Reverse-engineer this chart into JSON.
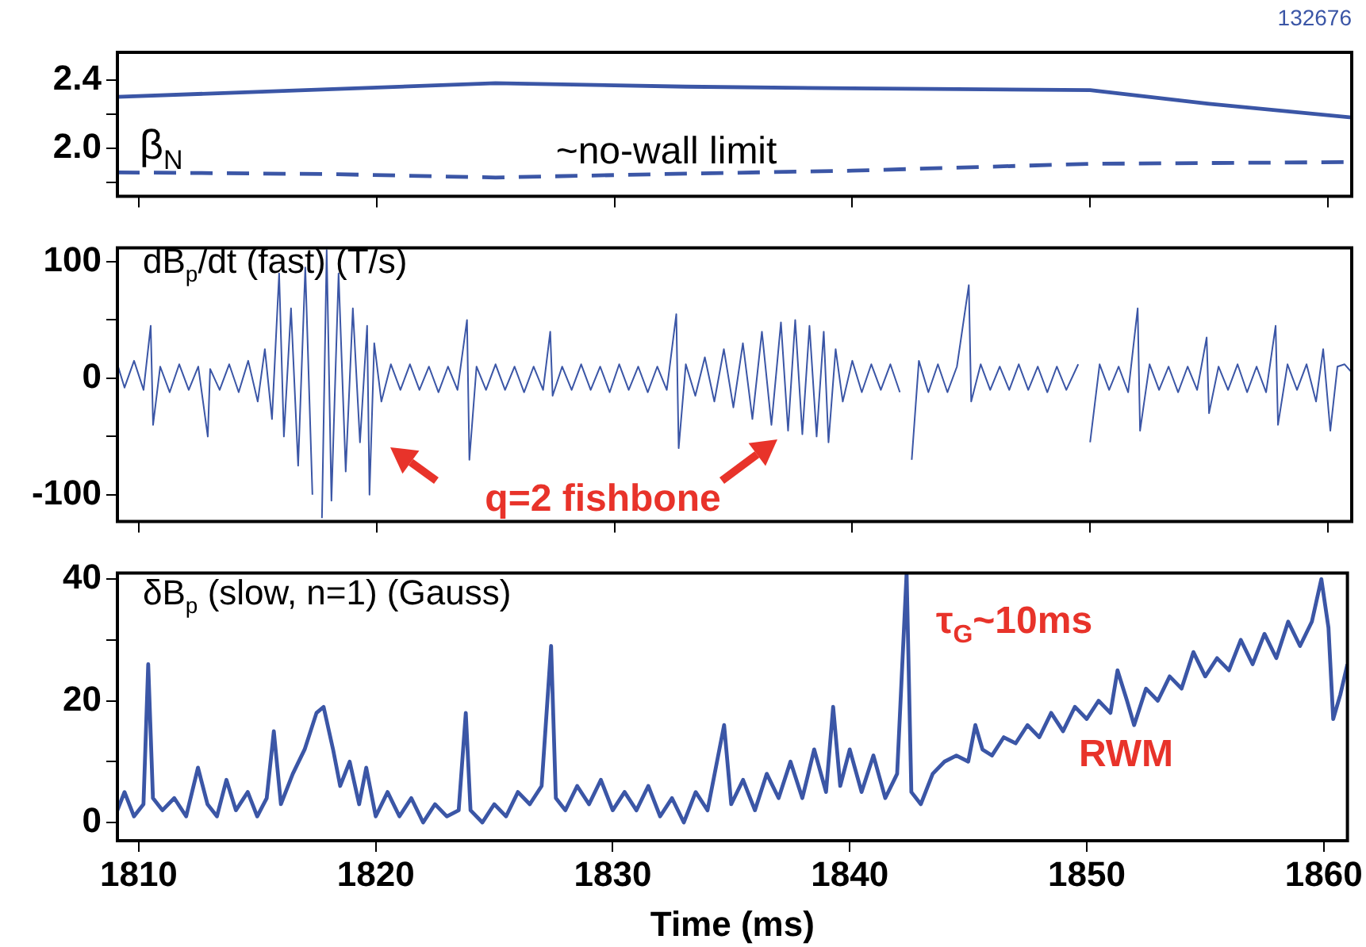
{
  "chart_data": [
    {
      "type": "line",
      "ylabel": "β$_{N}$",
      "annotations": [
        "132676"
      ],
      "marker": "none",
      "grid": false,
      "tick_labels": "y",
      "xlim": [
        1809.1,
        1861
      ],
      "xticks": [
        1810,
        1820,
        1830,
        1840,
        1850,
        1860
      ],
      "ylim": [
        1.72,
        2.56
      ],
      "yticks": [
        {
          "value": 1.8,
          "label": null
        },
        {
          "value": 2.0,
          "label": "2.0"
        },
        {
          "value": 2.2,
          "label": null
        },
        {
          "value": 2.4,
          "label": "2.4"
        }
      ],
      "series": [
        {
          "color": "#3b56a6",
          "line_style": "solid",
          "x": [
            1809.1,
            1817,
            1825,
            1833,
            1840,
            1850,
            1855,
            1861
          ],
          "values": [
            2.3,
            2.34,
            2.38,
            2.36,
            2.35,
            2.34,
            2.26,
            2.18
          ]
        },
        {
          "name": "~no-wall limit",
          "color": "#3b56a6",
          "line_style": "dashed",
          "x": [
            1809.1,
            1818,
            1825,
            1832,
            1840,
            1850,
            1861
          ],
          "values": [
            1.86,
            1.85,
            1.83,
            1.85,
            1.87,
            1.91,
            1.92
          ]
        }
      ]
    },
    {
      "type": "line",
      "ylabel": "dB$_{p}$/dt (fast) (T/s)",
      "annotations": [
        "q=2 fishbone"
      ],
      "marker": "none",
      "grid": false,
      "tick_labels": "y",
      "xlim": [
        1809.1,
        1861
      ],
      "xticks": [
        1810,
        1820,
        1830,
        1840,
        1850,
        1860
      ],
      "ylim": [
        -123,
        112
      ],
      "yticks": [
        {
          "value": -100,
          "label": "-100"
        },
        {
          "value": -50,
          "label": null
        },
        0,
        {
          "value": 50,
          "label": null
        },
        100
      ],
      "series": [
        {
          "color": "#3b56a6",
          "line_style": "solid",
          "x": [
            1809.1,
            1809.4,
            1809.8,
            1810.2,
            1810.5,
            1810.6,
            1810.9,
            1811.3,
            1811.7,
            1812.1,
            1812.5,
            1812.9,
            1813.0,
            1813.4,
            1813.8,
            1814.2,
            1814.6,
            1815.0,
            1815.3,
            1815.6,
            1815.9,
            1816.1,
            1816.4,
            1816.7,
            1817.0,
            1817.3,
            1817.5,
            1817.7,
            1817.9,
            1818.1,
            1818.4,
            1818.7,
            1819.0,
            1819.3,
            1819.6,
            1819.7,
            1819.9,
            1820.2,
            1820.6,
            1821.0,
            1821.4,
            1821.8,
            1822.2,
            1822.6,
            1823.0,
            1823.4,
            1823.8,
            1823.9,
            1824.2,
            1824.6,
            1825.0,
            1825.4,
            1825.8,
            1826.2,
            1826.6,
            1827.0,
            1827.3,
            1827.4,
            1827.8,
            1828.2,
            1828.6,
            1829.0,
            1829.4,
            1829.8,
            1830.2,
            1830.6,
            1831.0,
            1831.4,
            1831.8,
            1832.2,
            1832.6,
            1832.7,
            1833.0,
            1833.4,
            1833.8,
            1834.2,
            1834.6,
            1835.0,
            1835.4,
            1835.8,
            1836.2,
            1836.6,
            1837.0,
            1837.3,
            1837.6,
            1837.9,
            1838.2,
            1838.5,
            1838.8,
            1839.0,
            1839.3,
            1839.6,
            1840.0,
            1840.4,
            1840.8,
            1841.2,
            1841.6,
            1842.0,
            1842.4,
            1842.5,
            1842.8,
            1843.2,
            1843.6,
            1844.0,
            1844.4,
            1844.9,
            1845.0,
            1845.4,
            1845.8,
            1846.2,
            1846.6,
            1847.0,
            1847.4,
            1847.8,
            1848.2,
            1848.6,
            1849.0,
            1849.5,
            1849.9,
            1850.0,
            1850.4,
            1850.8,
            1851.2,
            1851.6,
            1852.0,
            1852.1,
            1852.5,
            1852.9,
            1853.3,
            1853.7,
            1854.1,
            1854.5,
            1854.9,
            1855.0,
            1855.4,
            1855.8,
            1856.2,
            1856.6,
            1857.0,
            1857.4,
            1857.8,
            1857.9,
            1858.3,
            1858.7,
            1859.1,
            1859.5,
            1859.8,
            1860.1,
            1860.4,
            1860.7,
            1861.0
          ],
          "values": [
            12,
            -8,
            15,
            -10,
            45,
            -40,
            10,
            -12,
            12,
            -10,
            10,
            -50,
            8,
            -10,
            12,
            -12,
            15,
            -20,
            25,
            -35,
            90,
            -50,
            60,
            -75,
            95,
            -100,
            null,
            -120,
            110,
            -105,
            90,
            -80,
            60,
            -55,
            45,
            -100,
            30,
            -20,
            12,
            -10,
            12,
            -10,
            10,
            -12,
            10,
            -10,
            50,
            -70,
            10,
            -10,
            12,
            -10,
            10,
            -12,
            10,
            -10,
            40,
            -15,
            10,
            -10,
            12,
            -10,
            10,
            -12,
            12,
            -10,
            10,
            -12,
            10,
            -10,
            55,
            -60,
            12,
            -15,
            18,
            -20,
            25,
            -25,
            30,
            -35,
            40,
            -40,
            48,
            -45,
            50,
            -48,
            45,
            -50,
            40,
            -55,
            25,
            -20,
            15,
            -12,
            12,
            -10,
            12,
            -12,
            null,
            -70,
            15,
            -12,
            12,
            -12,
            10,
            80,
            -20,
            12,
            -10,
            10,
            -10,
            12,
            -10,
            10,
            -12,
            10,
            -10,
            12,
            null,
            -55,
            12,
            -10,
            10,
            -12,
            60,
            -45,
            12,
            -10,
            10,
            -12,
            10,
            -10,
            35,
            -30,
            10,
            -10,
            12,
            -12,
            10,
            -12,
            45,
            -40,
            12,
            -10,
            12,
            -20,
            25,
            -45,
            10,
            12,
            5
          ]
        }
      ]
    },
    {
      "type": "line",
      "ylabel": "δB$_{p}$ (slow, n=1) (Gauss)",
      "xlabel": "Time (ms)",
      "annotations": [
        "τ$_{G}$~10ms",
        "RWM"
      ],
      "marker": "none",
      "grid": false,
      "xlim": [
        1809.1,
        1861
      ],
      "xticks": [
        1810,
        1820,
        1830,
        1840,
        1850,
        1860
      ],
      "ylim": [
        -3,
        41
      ],
      "yticks": [
        0,
        {
          "value": 10,
          "label": null
        },
        20,
        {
          "value": 30,
          "label": null
        },
        40
      ],
      "series": [
        {
          "color": "#3b56a6",
          "line_style": "solid",
          "x": [
            1809.1,
            1809.4,
            1809.8,
            1810.2,
            1810.4,
            1810.6,
            1811.0,
            1811.5,
            1812.0,
            1812.5,
            1812.9,
            1813.3,
            1813.7,
            1814.1,
            1814.6,
            1815.0,
            1815.4,
            1815.7,
            1816.0,
            1816.5,
            1817.0,
            1817.5,
            1817.8,
            1818.2,
            1818.5,
            1818.9,
            1819.3,
            1819.6,
            1820.0,
            1820.5,
            1821.0,
            1821.5,
            1822.0,
            1822.5,
            1823.0,
            1823.5,
            1823.8,
            1824.0,
            1824.5,
            1825.0,
            1825.5,
            1826.0,
            1826.5,
            1827.0,
            1827.4,
            1827.6,
            1828.0,
            1828.5,
            1829.0,
            1829.5,
            1830.0,
            1830.5,
            1831.0,
            1831.5,
            1832.0,
            1832.5,
            1833.0,
            1833.5,
            1834.0,
            1834.5,
            1834.7,
            1835.0,
            1835.5,
            1836.0,
            1836.5,
            1837.0,
            1837.5,
            1838.0,
            1838.5,
            1839.0,
            1839.3,
            1839.6,
            1840.0,
            1840.5,
            1841.0,
            1841.5,
            1842.0,
            1842.4,
            1842.6,
            1843.0,
            1843.5,
            1844.0,
            1844.5,
            1845.0,
            1845.3,
            1845.6,
            1846.0,
            1846.5,
            1847.0,
            1847.5,
            1848.0,
            1848.5,
            1849.0,
            1849.5,
            1850.0,
            1850.5,
            1851.0,
            1851.3,
            1851.7,
            1852.0,
            1852.5,
            1853.0,
            1853.5,
            1854.0,
            1854.5,
            1855.0,
            1855.5,
            1856.0,
            1856.5,
            1857.0,
            1857.5,
            1858.0,
            1858.5,
            1859.0,
            1859.5,
            1859.9,
            1860.2,
            1860.4,
            1860.7,
            1861.0
          ],
          "values": [
            2,
            5,
            1,
            3,
            26,
            4,
            2,
            4,
            1,
            9,
            3,
            1,
            7,
            2,
            5,
            1,
            4,
            15,
            3,
            8,
            12,
            18,
            19,
            12,
            6,
            10,
            3,
            9,
            1,
            5,
            1,
            4,
            0,
            3,
            1,
            2,
            18,
            2,
            0,
            3,
            1,
            5,
            3,
            6,
            29,
            4,
            2,
            6,
            3,
            7,
            2,
            5,
            2,
            6,
            1,
            4,
            0,
            5,
            2,
            12,
            16,
            3,
            7,
            2,
            8,
            4,
            10,
            4,
            12,
            5,
            19,
            6,
            12,
            5,
            11,
            4,
            8,
            41,
            5,
            3,
            8,
            10,
            11,
            10,
            16,
            12,
            11,
            14,
            13,
            16,
            14,
            18,
            15,
            19,
            17,
            20,
            18,
            25,
            20,
            16,
            22,
            20,
            24,
            22,
            28,
            24,
            27,
            25,
            30,
            26,
            31,
            27,
            33,
            29,
            33,
            40,
            32,
            17,
            21,
            26
          ]
        }
      ]
    }
  ]
}
